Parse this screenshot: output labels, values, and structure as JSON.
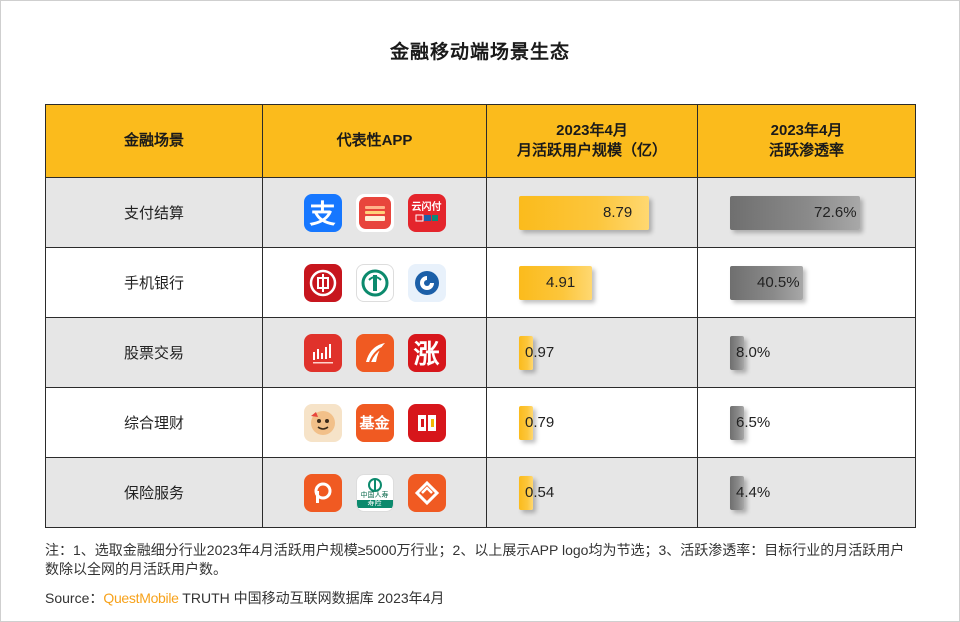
{
  "title": "金融移动端场景生态",
  "headers": {
    "scene": "金融场景",
    "app": "代表性APP",
    "users": "2023年4月\n月活跃用户规模（亿）",
    "rate": "2023年4月\n活跃渗透率"
  },
  "rows": [
    {
      "scene": "支付结算",
      "users_label": "8.79",
      "rate_label": "72.6%",
      "icons": [
        "alipay-icon",
        "huawei-wallet-icon",
        "unionpay-icon"
      ]
    },
    {
      "scene": "手机银行",
      "users_label": "4.91",
      "rate_label": "40.5%",
      "icons": [
        "icbc-icon",
        "abc-bank-icon",
        "ccb-icon"
      ]
    },
    {
      "scene": "股票交易",
      "users_label": "0.97",
      "rate_label": "8.0%",
      "icons": [
        "stock-chart-icon",
        "stock-wing-icon",
        "zhang-stock-icon"
      ]
    },
    {
      "scene": "综合理财",
      "users_label": "0.79",
      "rate_label": "6.5%",
      "icons": [
        "wealth-mascot-icon",
        "fund-icon",
        "book-icon"
      ]
    },
    {
      "scene": "保险服务",
      "users_label": "0.54",
      "rate_label": "4.4%",
      "icons": [
        "ping-insurance-icon",
        "china-life-icon",
        "orange-diamond-icon"
      ]
    }
  ],
  "icon_text": {
    "alipay": "支",
    "unionpay": "云闪付",
    "icbc": "工",
    "zhang": "涨",
    "fund": "基金",
    "china_life_name": "中国人寿",
    "china_life_sub": "寿险"
  },
  "chart_data": {
    "type": "table",
    "categories": [
      "支付结算",
      "手机银行",
      "股票交易",
      "综合理财",
      "保险服务"
    ],
    "series": [
      {
        "name": "2023年4月 月活跃用户规模（亿）",
        "values": [
          8.79,
          4.91,
          0.97,
          0.79,
          0.54
        ]
      },
      {
        "name": "2023年4月 活跃渗透率",
        "values": [
          72.6,
          40.5,
          8.0,
          6.5,
          4.4
        ]
      }
    ]
  },
  "note": "注：1、选取金融细分行业2023年4月活跃用户规模≥5000万行业；2、以上展示APP logo均为节选；3、活跃渗透率：目标行业的月活跃用户数除以全网的月活跃用户数。",
  "source": {
    "prefix": "Source：",
    "brand": "QuestMobile",
    "rest": " TRUTH 中国移动互联网数据库 2023年4月"
  },
  "colors": {
    "header_bg": "#fbbb1c",
    "users_bar": "#fbbb1c",
    "rate_bar": "#7a7a7a",
    "shade_row": "#e6e6e6",
    "brand": "#f7a21b"
  }
}
